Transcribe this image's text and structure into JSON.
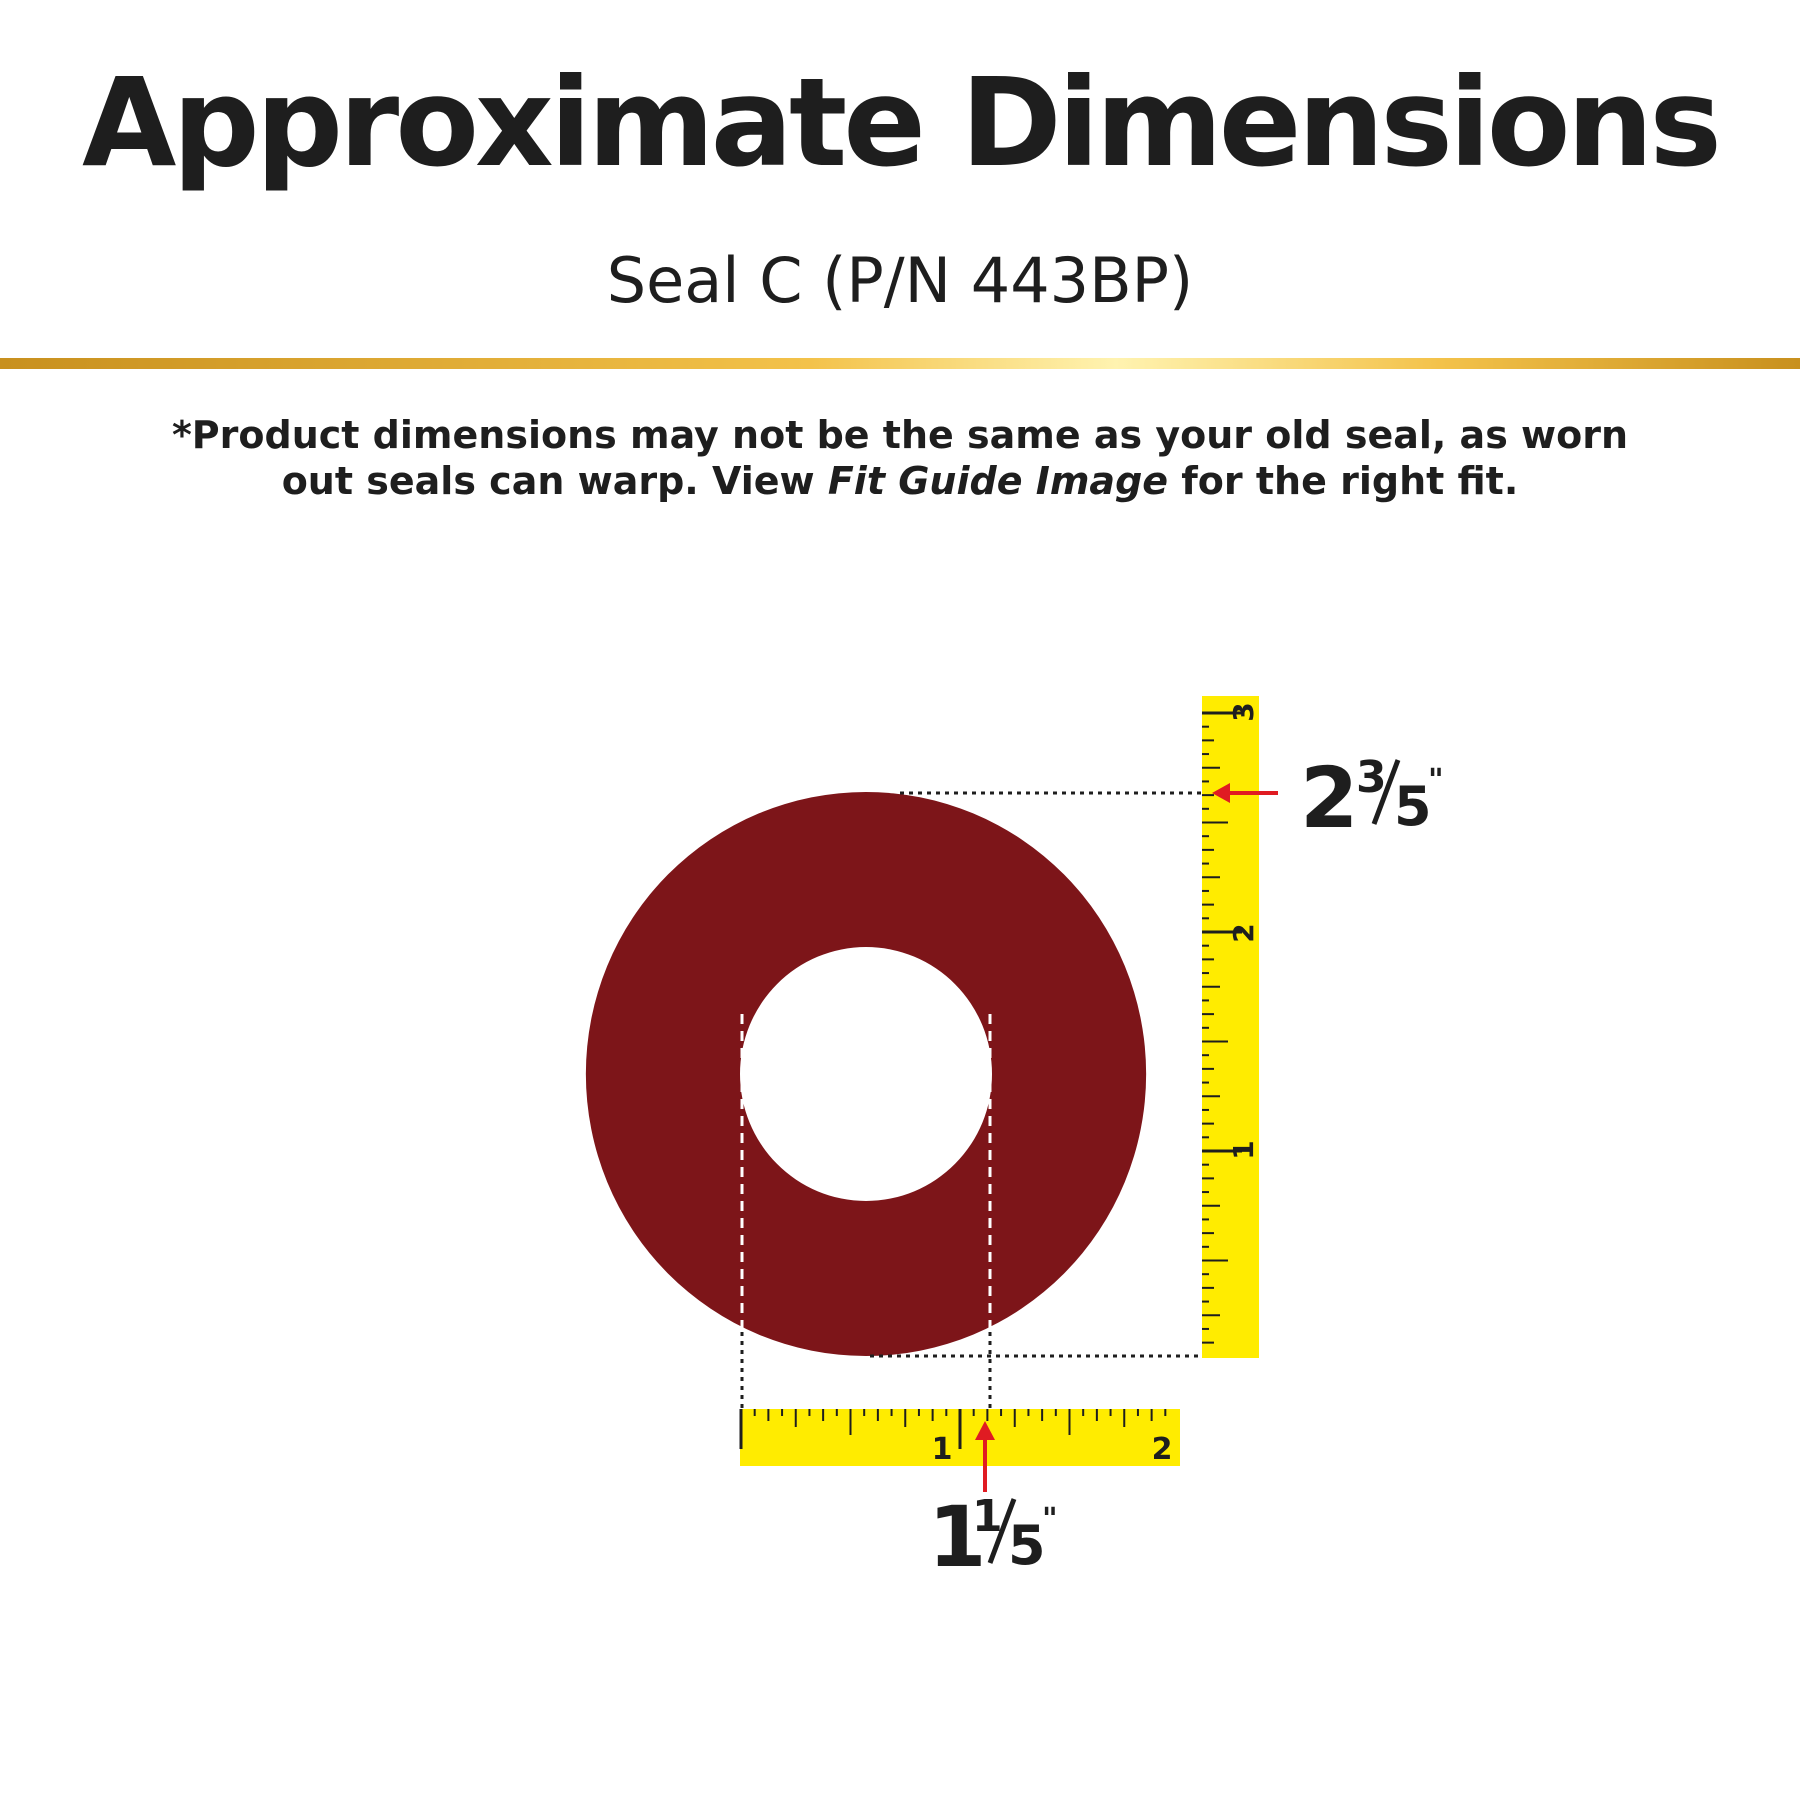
{
  "title": "Approximate Dimensions",
  "subtitle": "Seal C (P/N 443BP)",
  "note": {
    "line1": "*Product dimensions may not be the same as your old seal, as worn",
    "line2_pre": "out seals can warp. View ",
    "line2_em": "Fit Guide Image",
    "line2_post": " for the right fit."
  },
  "measurements": {
    "outer": {
      "whole": "2",
      "numerator": "3",
      "denominator": "5",
      "unit_mark": "\""
    },
    "inner": {
      "whole": "1",
      "numerator": "1",
      "denominator": "5",
      "unit_mark": "\""
    }
  },
  "rulers": {
    "vertical_labels": [
      "1",
      "2",
      "3"
    ],
    "horizontal_labels": [
      "1",
      "2"
    ]
  },
  "colors": {
    "seal": "#7d1519",
    "ruler": "#ffec00",
    "arrow": "#e01b22",
    "gold_dark": "#c8901e",
    "gold_light": "#fff3b0",
    "text": "#1e1e1e"
  }
}
